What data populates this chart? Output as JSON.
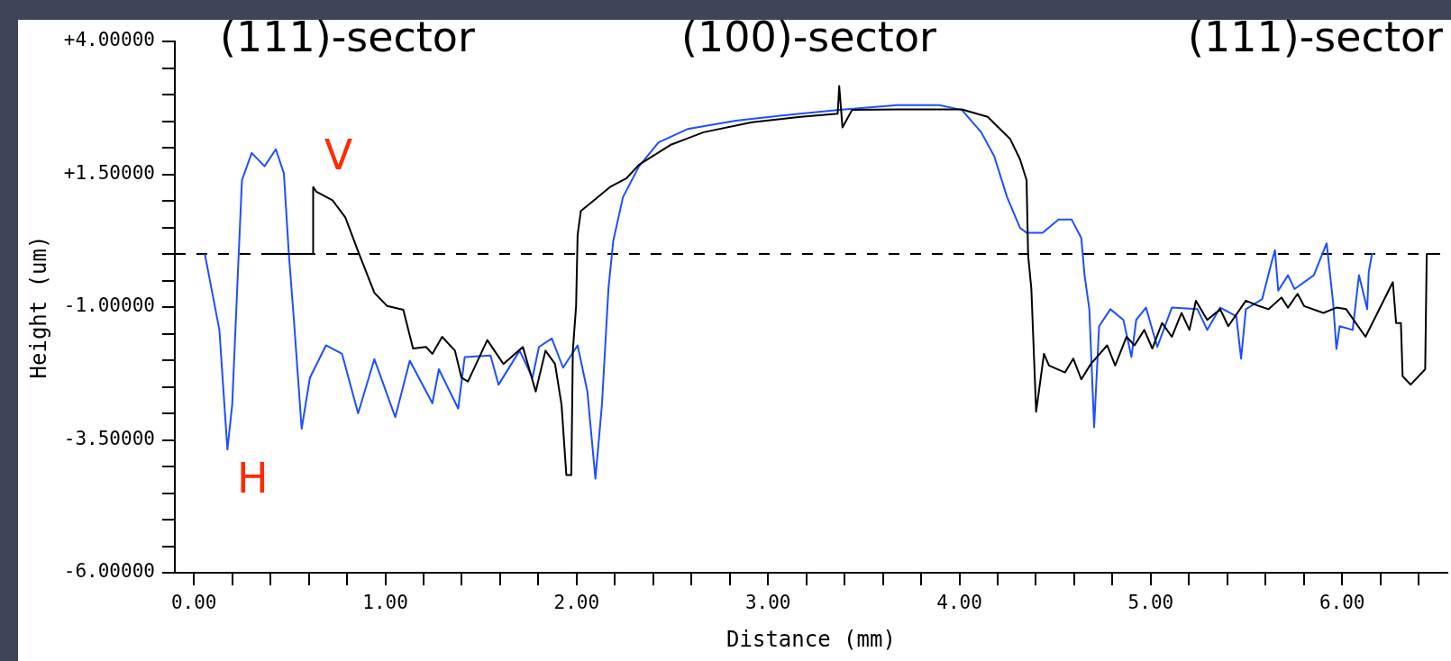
{
  "chart_data": {
    "type": "line",
    "xlabel": "Distance (mm)",
    "ylabel": "Height (um)",
    "xlim": [
      -0.1,
      6.55
    ],
    "ylim": [
      -6,
      4
    ],
    "xticks": [
      {
        "value": 0,
        "label": "0.00"
      },
      {
        "value": 0.2,
        "label": null
      },
      {
        "value": 0.4,
        "label": null
      },
      {
        "value": 0.6,
        "label": null
      },
      {
        "value": 0.8,
        "label": null
      },
      {
        "value": 1,
        "label": "1.00"
      },
      {
        "value": 1.2,
        "label": null
      },
      {
        "value": 1.4,
        "label": null
      },
      {
        "value": 1.6,
        "label": null
      },
      {
        "value": 1.8,
        "label": null
      },
      {
        "value": 2,
        "label": "2.00"
      },
      {
        "value": 2.2,
        "label": null
      },
      {
        "value": 2.4,
        "label": null
      },
      {
        "value": 2.6,
        "label": null
      },
      {
        "value": 2.8,
        "label": null
      },
      {
        "value": 3,
        "label": "3.00"
      },
      {
        "value": 3.2,
        "label": null
      },
      {
        "value": 3.4,
        "label": null
      },
      {
        "value": 3.6,
        "label": null
      },
      {
        "value": 3.8,
        "label": null
      },
      {
        "value": 4,
        "label": "4.00"
      },
      {
        "value": 4.2,
        "label": null
      },
      {
        "value": 4.4,
        "label": null
      },
      {
        "value": 4.6,
        "label": null
      },
      {
        "value": 4.8,
        "label": null
      },
      {
        "value": 5,
        "label": "5.00"
      },
      {
        "value": 5.2,
        "label": null
      },
      {
        "value": 5.4,
        "label": null
      },
      {
        "value": 5.6,
        "label": null
      },
      {
        "value": 5.8,
        "label": null
      },
      {
        "value": 6,
        "label": "6.00"
      },
      {
        "value": 6.2,
        "label": null
      },
      {
        "value": 6.4,
        "label": null
      }
    ],
    "yticks": [
      {
        "value": -6,
        "label": "-6.00000"
      },
      {
        "value": -5.5,
        "label": null
      },
      {
        "value": -5,
        "label": null
      },
      {
        "value": -4.5,
        "label": null
      },
      {
        "value": -4,
        "label": null
      },
      {
        "value": -3.5,
        "label": "-3.50000"
      },
      {
        "value": -3,
        "label": null
      },
      {
        "value": -2.5,
        "label": null
      },
      {
        "value": -2,
        "label": null
      },
      {
        "value": -1.5,
        "label": null
      },
      {
        "value": -1,
        "label": "-1.00000"
      },
      {
        "value": -0.5,
        "label": null
      },
      {
        "value": 0,
        "label": null
      },
      {
        "value": 0.5,
        "label": null
      },
      {
        "value": 1,
        "label": null
      },
      {
        "value": 1.5,
        "label": "+1.50000"
      },
      {
        "value": 2,
        "label": null
      },
      {
        "value": 2.5,
        "label": null
      },
      {
        "value": 3,
        "label": null
      },
      {
        "value": 3.5,
        "label": null
      },
      {
        "value": 4,
        "label": "+4.00000"
      }
    ],
    "grid": false,
    "legend": false,
    "marker": "none",
    "line_style": "solid",
    "ref_lines": [
      {
        "axis": "y",
        "value": 0,
        "label": null,
        "color": "#000000",
        "line_style": "dashed"
      }
    ],
    "annotations": [
      "(111)-sector",
      "(100)-sector",
      "(111)-sector"
    ],
    "series": [
      {
        "name": "V",
        "color": "#000000",
        "x": [
          0.4,
          0.623,
          0.623,
          0.64,
          0.724,
          0.791,
          0.858,
          0.943,
          1.01,
          1.094,
          1.145,
          1.213,
          1.246,
          1.297,
          1.364,
          1.398,
          1.432,
          1.533,
          1.617,
          1.719,
          1.786,
          1.837,
          1.887,
          1.921,
          1.946,
          1.972,
          1.98,
          1.997,
          2.005,
          2.022,
          2.09,
          2.174,
          2.259,
          2.326,
          2.495,
          2.663,
          2.916,
          3.17,
          3.364,
          3.372,
          3.389,
          3.439,
          3.676,
          4.013,
          4.148,
          4.266,
          4.317,
          4.351,
          4.359,
          4.376,
          4.401,
          4.442,
          4.468,
          4.552,
          4.595,
          4.637,
          4.687,
          4.772,
          4.814,
          4.873,
          4.915,
          4.966,
          5.008,
          5.059,
          5.11,
          5.161,
          5.202,
          5.236,
          5.295,
          5.363,
          5.405,
          5.497,
          5.565,
          5.616,
          5.683,
          5.717,
          5.767,
          5.801,
          5.902,
          5.97,
          6.021,
          6.122,
          6.265,
          6.282,
          6.307,
          6.316,
          6.358,
          6.434,
          6.442,
          6.459
        ],
        "values": [
          0,
          0,
          1.26,
          1.17,
          1.01,
          0.69,
          0.05,
          -0.73,
          -0.98,
          -1.05,
          -1.78,
          -1.75,
          -1.88,
          -1.56,
          -1.82,
          -2.33,
          -2.4,
          -1.62,
          -2.07,
          -1.75,
          -2.59,
          -1.82,
          -2.07,
          -2.84,
          -4.16,
          -4.16,
          -1.82,
          -0.98,
          0.36,
          0.81,
          1.01,
          1.26,
          1.42,
          1.68,
          2.06,
          2.29,
          2.48,
          2.58,
          2.64,
          3.16,
          2.38,
          2.71,
          2.72,
          2.72,
          2.58,
          2.16,
          1.78,
          1.39,
          -0.02,
          -0.66,
          -2.97,
          -1.88,
          -2.1,
          -2.23,
          -1.97,
          -2.36,
          -2.07,
          -1.72,
          -2.1,
          -1.56,
          -1.72,
          -1.43,
          -1.78,
          -1.3,
          -1.56,
          -1.11,
          -1.43,
          -0.88,
          -1.24,
          -1.04,
          -1.36,
          -0.88,
          -0.98,
          -1.04,
          -0.82,
          -1.01,
          -0.75,
          -0.98,
          -1.11,
          -1.01,
          -1.04,
          -1.56,
          -0.53,
          -1.3,
          -1.3,
          -2.3,
          -2.46,
          -2.17,
          0,
          0
        ]
      },
      {
        "name": "H",
        "color": "#1f4dff",
        "x": [
          0.057,
          0.099,
          0.133,
          0.175,
          0.2,
          0.234,
          0.251,
          0.302,
          0.369,
          0.428,
          0.47,
          0.496,
          0.521,
          0.563,
          0.606,
          0.69,
          0.774,
          0.858,
          0.943,
          1.052,
          1.128,
          1.246,
          1.28,
          1.381,
          1.415,
          1.55,
          1.592,
          1.702,
          1.769,
          1.803,
          1.87,
          1.929,
          2.005,
          2.056,
          2.098,
          2.132,
          2.166,
          2.191,
          2.242,
          2.326,
          2.428,
          2.579,
          2.832,
          3.085,
          3.372,
          3.676,
          3.895,
          4.013,
          4.114,
          4.182,
          4.249,
          4.317,
          4.351,
          4.435,
          4.518,
          4.586,
          4.637,
          4.654,
          4.679,
          4.704,
          4.73,
          4.789,
          4.857,
          4.899,
          4.924,
          4.975,
          5.034,
          5.11,
          5.244,
          5.295,
          5.363,
          5.447,
          5.472,
          5.497,
          5.582,
          5.632,
          5.649,
          5.666,
          5.717,
          5.751,
          5.852,
          5.919,
          5.953,
          5.97,
          5.987,
          6.055,
          6.088,
          6.131,
          6.139,
          6.156,
          6.164
        ],
        "values": [
          0,
          -0.79,
          -1.43,
          -3.68,
          -2.84,
          0,
          1.39,
          1.9,
          1.65,
          1.97,
          1.52,
          0,
          -1.17,
          -3.29,
          -2.33,
          -1.72,
          -1.88,
          -3.0,
          -1.98,
          -3.07,
          -2.01,
          -2.81,
          -2.17,
          -2.91,
          -1.94,
          -1.91,
          -2.46,
          -1.82,
          -2.33,
          -1.75,
          -1.59,
          -2.14,
          -1.72,
          -2.59,
          -4.23,
          -2.84,
          -0.66,
          0.24,
          1.07,
          1.65,
          2.1,
          2.35,
          2.51,
          2.61,
          2.71,
          2.8,
          2.8,
          2.71,
          2.29,
          1.84,
          1.07,
          0.49,
          0.4,
          0.4,
          0.65,
          0.65,
          0.3,
          -0.4,
          -1.04,
          -3.26,
          -1.36,
          -1.04,
          -1.24,
          -1.94,
          -1.24,
          -1.01,
          -1.75,
          -1.01,
          -1.04,
          -1.43,
          -1.01,
          -1.17,
          -1.97,
          -1.04,
          -0.85,
          -0.15,
          0.07,
          -0.69,
          -0.4,
          -0.66,
          -0.4,
          0.2,
          -0.92,
          -1.79,
          -1.36,
          -1.43,
          -0.4,
          -1.04,
          -0.34,
          0,
          0
        ]
      }
    ]
  }
}
